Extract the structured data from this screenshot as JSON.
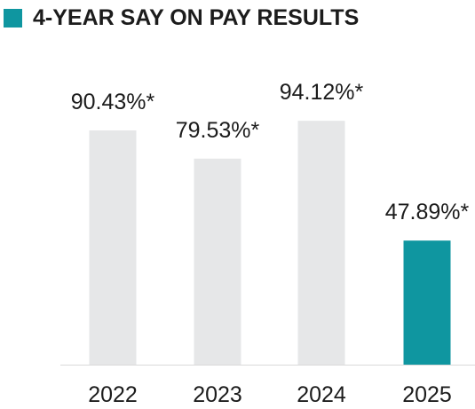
{
  "title": "4-YEAR SAY ON PAY RESULTS",
  "colors": {
    "accent": "#0f96a0",
    "bar_default": "#e6e7e8",
    "bar_highlight": "#0f96a0",
    "axis": "#d9d9d9",
    "text": "#1c1c1c"
  },
  "chart_data": {
    "type": "bar",
    "title": "4-YEAR SAY ON PAY RESULTS",
    "categories": [
      "2022",
      "2023",
      "2024",
      "2025"
    ],
    "values": [
      90.43,
      79.53,
      94.12,
      47.89
    ],
    "data_labels": [
      "90.43%*",
      "79.53%*",
      "94.12%*",
      "47.89%*"
    ],
    "highlight_index": 3,
    "ylim": [
      0,
      100
    ],
    "grid": false,
    "legend": "none",
    "xlabel": "",
    "ylabel": ""
  }
}
